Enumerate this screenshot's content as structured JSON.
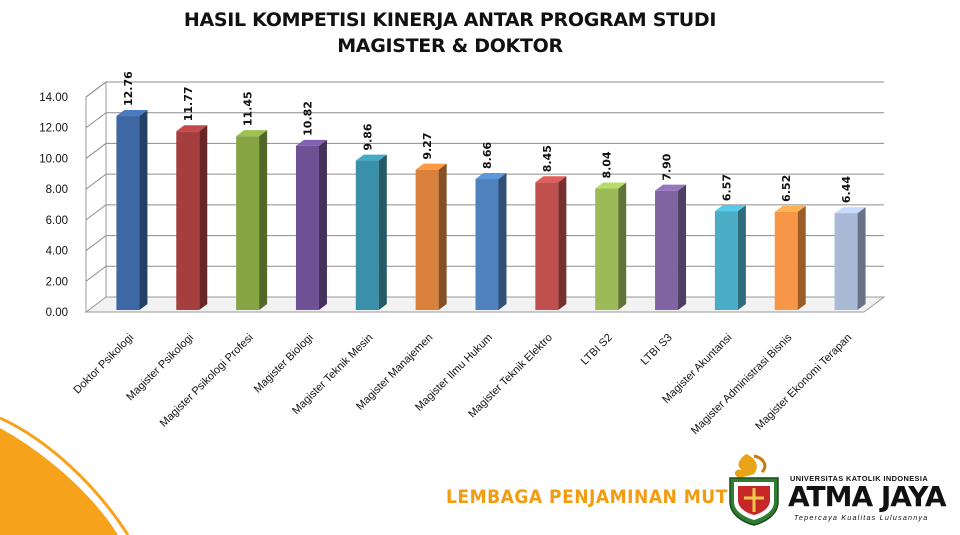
{
  "chart_data": {
    "type": "bar",
    "title": [
      "HASIL KOMPETISI KINERJA ANTAR PROGRAM  STUDI",
      "MAGISTER & DOKTOR"
    ],
    "categories": [
      "Doktor Psikologi",
      "Magister Psikologi",
      "Magister Psikologi Profesi",
      "Magister Biologi",
      "Magister Teknik Mesin",
      "Magister Manajemen",
      "Magister Ilmu Hukum",
      "Magister Teknik Elektro",
      "LTBI S2",
      "LTBI S3",
      "Magister Akuntansi",
      "Magister Administrasi Bisnis",
      "Magister Ekonomi Terapan"
    ],
    "values": [
      12.76,
      11.77,
      11.45,
      10.82,
      9.86,
      9.27,
      8.66,
      8.45,
      8.04,
      7.9,
      6.57,
      6.52,
      6.44
    ],
    "value_labels": [
      "12.76",
      "11.77",
      "11.45",
      "10.82",
      "9.86",
      "9.27",
      "8.66",
      "8.45",
      "8.04",
      "7.90",
      "6.57",
      "6.52",
      "6.44"
    ],
    "bar_colors": [
      "#3d68a3",
      "#a43f3e",
      "#86a444",
      "#6e5194",
      "#3a90a8",
      "#d9813a",
      "#4f81bd",
      "#c0504d",
      "#9bbb59",
      "#8064a2",
      "#4bacc6",
      "#f79646",
      "#a9bad7"
    ],
    "yticks": [
      "0.00",
      "2.00",
      "4.00",
      "6.00",
      "8.00",
      "10.00",
      "12.00",
      "14.00"
    ],
    "ylim": [
      0,
      14
    ],
    "grid": true,
    "legend": "none",
    "style": "3d-column"
  },
  "footer": {
    "unit_name": "LEMBAGA PENJAMINAN MUTU",
    "university_small": "UNIVERSITAS KATOLIK INDONESIA",
    "university_name": "ATMA JAYA",
    "motto": "Tepercaya Kualitas Lulusannya",
    "accent_color": "#f39c12"
  }
}
